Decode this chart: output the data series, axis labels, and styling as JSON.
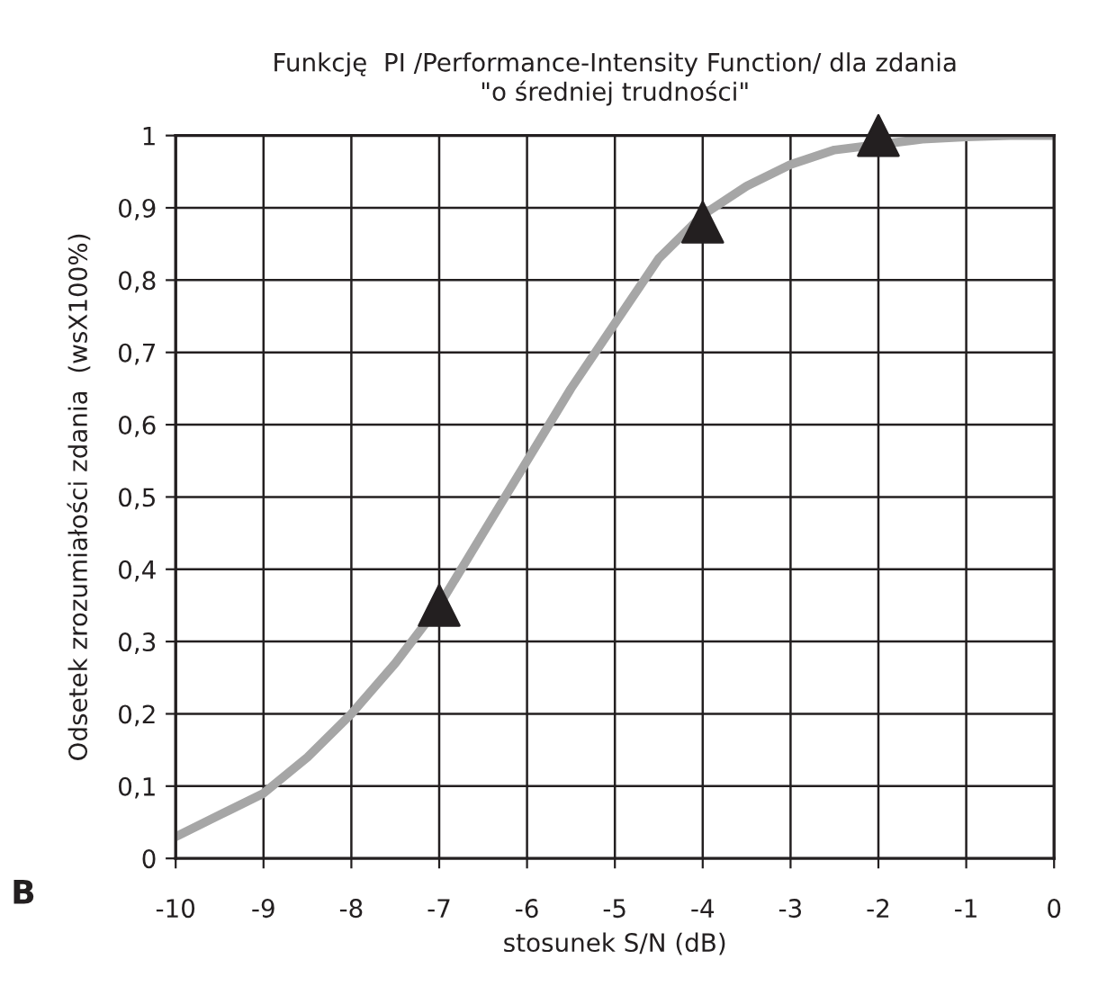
{
  "chart_data": {
    "type": "line",
    "title": "Funkcję  PI /Performance-Intensity Function/ dla zdania\n\"o średniej trudności\"",
    "xlabel": "stosunek S/N (dB)",
    "ylabel": "Odsetek zrozumiałości zdania  (wsX100%)",
    "series": [
      {
        "color": "#a6a6a6",
        "marker": "none",
        "x": [
          -10,
          -9.5,
          -9,
          -8.5,
          -8,
          -7.5,
          -7,
          -6.5,
          -6,
          -5.5,
          -5,
          -4.5,
          -4,
          -3.5,
          -3,
          -2.5,
          -1.5,
          -1,
          -0.5,
          0
        ],
        "values": [
          0.03,
          0.06,
          0.09,
          0.14,
          0.2,
          0.27,
          0.35,
          0.45,
          0.55,
          0.65,
          0.74,
          0.83,
          0.89,
          0.93,
          0.96,
          0.98,
          0.995,
          0.998,
          1,
          1
        ]
      },
      {
        "type": "scatter",
        "color": "#231f20",
        "marker": "triangle",
        "x": [
          -7,
          -4,
          -2
        ],
        "values": [
          0.35,
          0.88,
          1.0
        ]
      }
    ],
    "xlim": [
      -10,
      0
    ],
    "xticks": [
      -10,
      -9,
      -8,
      -7,
      -6,
      -5,
      -4,
      -3,
      -2,
      -1,
      0
    ],
    "ylim": [
      0,
      1
    ],
    "yticks": [
      0,
      {
        "value": 0.1,
        "label": "0,1"
      },
      {
        "value": 0.2,
        "label": "0,2"
      },
      {
        "value": 0.3,
        "label": "0,3"
      },
      {
        "value": 0.4,
        "label": "0,4"
      },
      {
        "value": 0.5,
        "label": "0,5"
      },
      {
        "value": 0.6,
        "label": "0,6"
      },
      {
        "value": 0.7,
        "label": "0,7"
      },
      {
        "value": 0.8,
        "label": "0,8"
      },
      {
        "value": 0.9,
        "label": "0,9"
      },
      1
    ],
    "grid": true,
    "annotations": [
      "B"
    ]
  }
}
